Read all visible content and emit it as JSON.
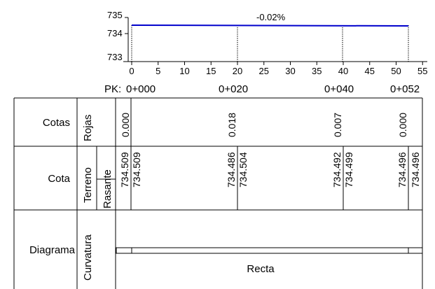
{
  "profile": {
    "y_axis": {
      "ticks": [
        735,
        734,
        733
      ],
      "range": [
        733,
        735
      ]
    },
    "x_axis": {
      "ticks": [
        0,
        5,
        10,
        15,
        20,
        25,
        30,
        35,
        40,
        45,
        50,
        55
      ],
      "range": [
        0,
        55
      ]
    },
    "grade_label": "-0.02%",
    "line_color": "#0000cc"
  },
  "pk": {
    "label": "PK:",
    "stations": [
      "0+000",
      "0+020",
      "0+040",
      "0+052"
    ]
  },
  "table": {
    "row_cotas": {
      "label": "Cotas",
      "sub": "Rojas",
      "values": [
        "0.000",
        "0.018",
        "0.007",
        "0.000"
      ]
    },
    "row_cota": {
      "label": "Cota",
      "sub1": "Terreno",
      "sub2": "Rasante",
      "terreno": [
        "734.509",
        "734.486",
        "734.492",
        "734.496"
      ],
      "rasante": [
        "734.509",
        "734.504",
        "734.499",
        "734.496"
      ]
    },
    "row_diagrama": {
      "label": "Diagrama",
      "sub": "Curvatura",
      "segment_label": "Recta"
    }
  },
  "chart_data": {
    "type": "line",
    "x": [
      0,
      52.5
    ],
    "series": [
      {
        "values": [
          734.509,
          734.496
        ]
      }
    ],
    "xlim": [
      0,
      55
    ],
    "ylim": [
      733,
      735
    ],
    "annotations": [
      "-0.02%"
    ],
    "stations": [
      0,
      20,
      40,
      52.5
    ]
  }
}
